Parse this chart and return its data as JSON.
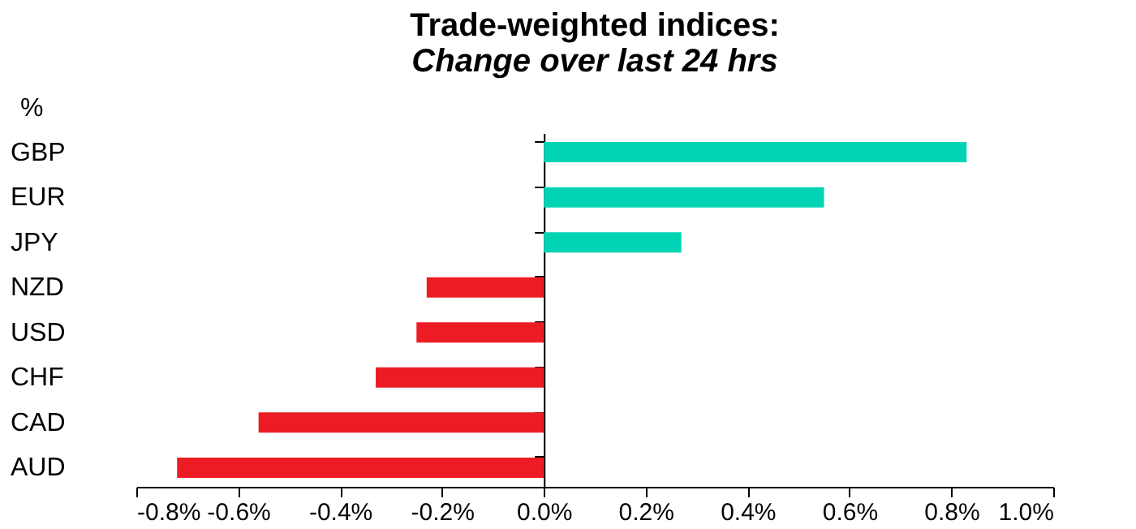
{
  "chart_data": {
    "type": "bar",
    "orientation": "horizontal",
    "title": "Trade-weighted indices:",
    "subtitle": "Change over last 24 hrs",
    "ylabel": "%",
    "categories": [
      "GBP",
      "EUR",
      "JPY",
      "NZD",
      "USD",
      "CHF",
      "CAD",
      "AUD"
    ],
    "values": [
      0.83,
      0.55,
      0.27,
      -0.23,
      -0.25,
      -0.33,
      -0.56,
      -0.72
    ],
    "colors": [
      "#00d4b4",
      "#00d4b4",
      "#00d4b4",
      "#ed1c24",
      "#ed1c24",
      "#ed1c24",
      "#ed1c24",
      "#ed1c24"
    ],
    "xlim": [
      -0.8,
      1.0
    ],
    "xticks": [
      {
        "value": -0.8,
        "label": "-0.8%"
      },
      {
        "value": -0.6,
        "label": "-0.6%"
      },
      {
        "value": -0.4,
        "label": "-0.4%"
      },
      {
        "value": -0.2,
        "label": "-0.2%"
      },
      {
        "value": 0,
        "label": "0.0%"
      },
      {
        "value": 0.2,
        "label": "0.2%"
      },
      {
        "value": 0.4,
        "label": "0.4%"
      },
      {
        "value": 0.6,
        "label": "0.6%"
      },
      {
        "value": 0.8,
        "label": "0.8%"
      },
      {
        "value": 1.0,
        "label": "1.0%"
      }
    ],
    "tick_labels": true
  }
}
